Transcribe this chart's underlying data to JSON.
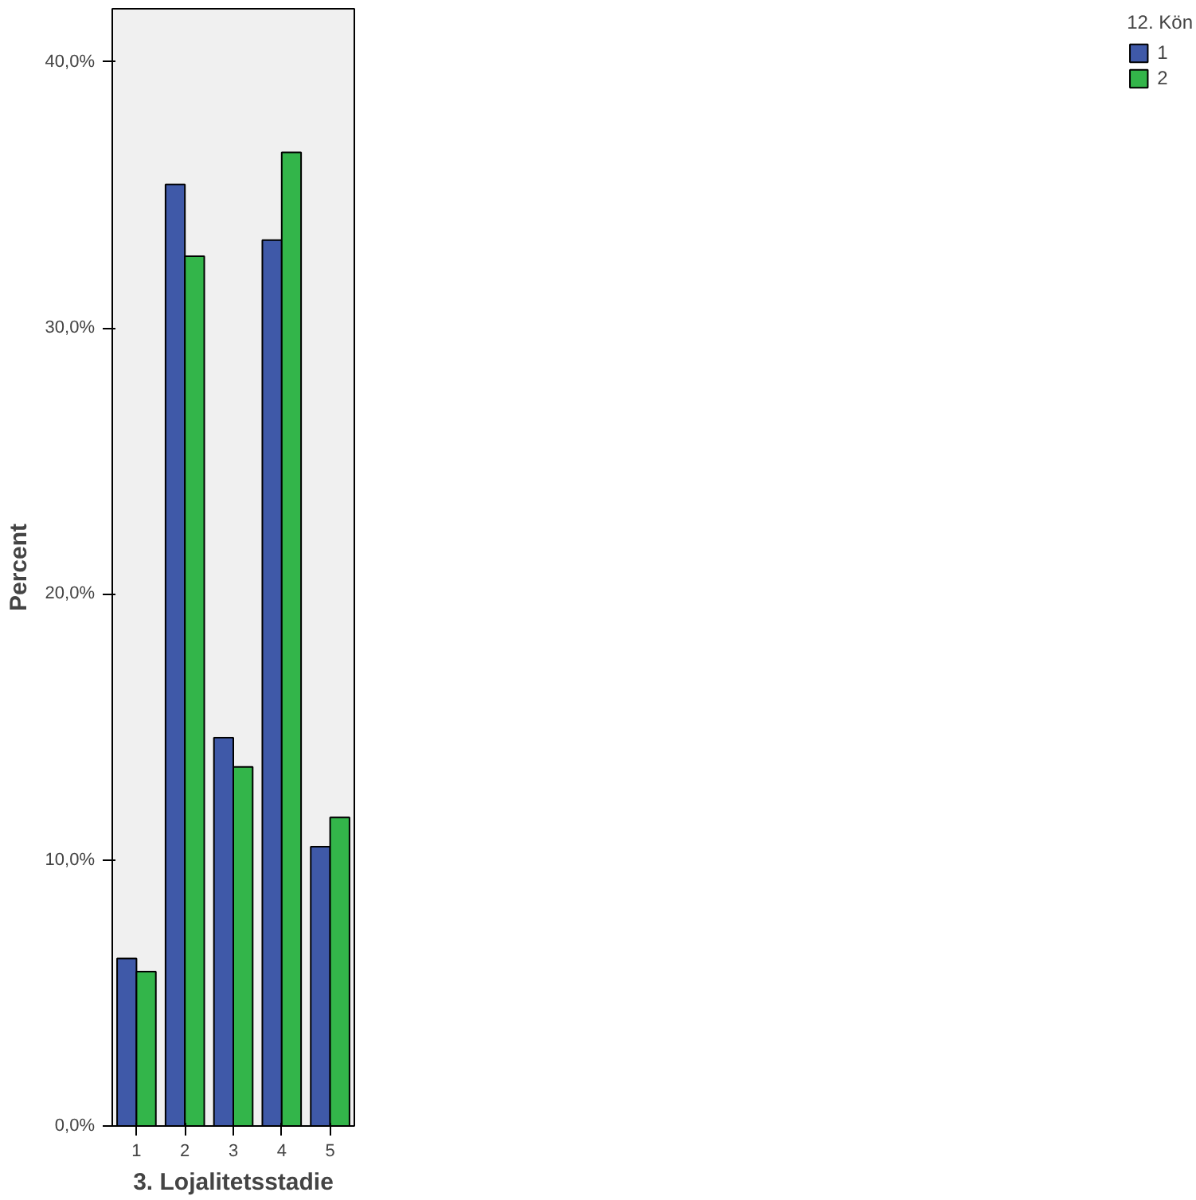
{
  "chart_data": {
    "type": "bar",
    "xlabel": "3. Lojalitetsstadie",
    "ylabel": "Percent",
    "legend_title": "12. Kön",
    "categories": [
      "1",
      "2",
      "3",
      "4",
      "5"
    ],
    "series": [
      {
        "name": "1",
        "color": "#3f59a8",
        "values": [
          6.3,
          35.4,
          14.6,
          33.3,
          10.5
        ]
      },
      {
        "name": "2",
        "color": "#33b54a",
        "values": [
          5.8,
          32.7,
          13.5,
          36.6,
          11.6
        ]
      }
    ],
    "ylim": [
      0,
      42
    ],
    "yticks": [
      {
        "value": 0,
        "label": "0,0%"
      },
      {
        "value": 10,
        "label": "10,0%"
      },
      {
        "value": 20,
        "label": "20,0%"
      },
      {
        "value": 30,
        "label": "30,0%"
      },
      {
        "value": 40,
        "label": "40,0%"
      }
    ],
    "grid": false,
    "legend": "right"
  }
}
